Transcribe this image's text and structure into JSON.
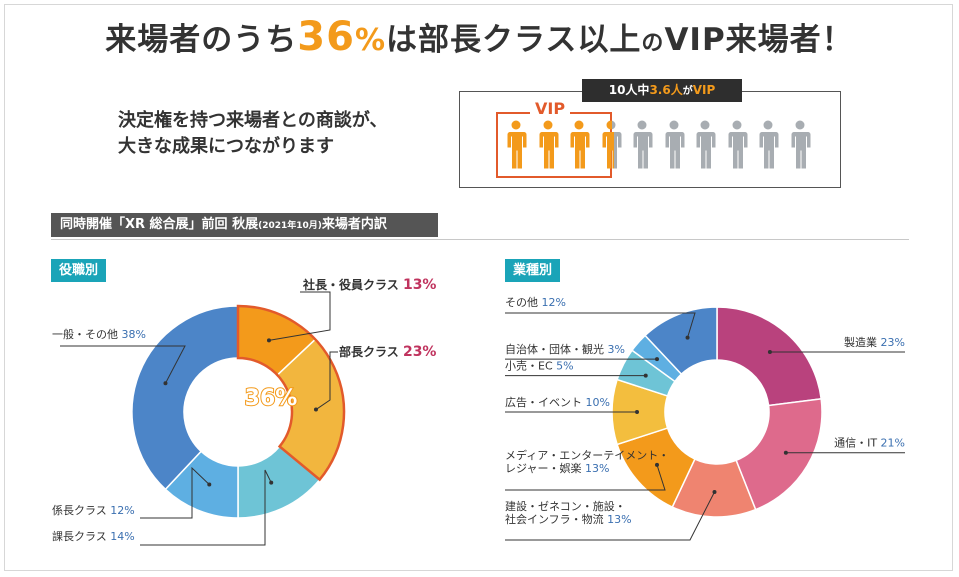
{
  "headline": {
    "part1": "来場者のうち",
    "percent": "36",
    "percent_unit": "%",
    "part2": "は部長クラス以上",
    "particle": "の",
    "part3": "VIP来場者！"
  },
  "subtitle": {
    "line1": "決定権を持つ来場者との商談が、",
    "line2": "大きな成果につながります"
  },
  "vip_box": {
    "tag_prefix": "10人中",
    "tag_value": "3.6人",
    "tag_mid": "が",
    "tag_suffix": "VIP",
    "vip_label": "VIP",
    "vip_count": 3.6,
    "total": 10
  },
  "section": {
    "title_main": "同時開催「XR 総合展」前回 秋展",
    "title_small": "(2021年10月)",
    "title_end": "来場者内訳"
  },
  "colors": {
    "orange": "#f39a1b",
    "red": "#e25a2b",
    "teal": "#1aa4b8",
    "pct_blue": "#3a6fb0",
    "pct_pink": "#c0335e",
    "gray_person": "#a8adb2"
  },
  "chart_data": [
    {
      "type": "pie",
      "title": "役職別",
      "center_label": "36%",
      "slices": [
        {
          "name": "社長・役員クラス",
          "value": 13,
          "pct_label": "13%",
          "color": "#f39a1b",
          "vip": true
        },
        {
          "name": "部長クラス",
          "value": 23,
          "pct_label": "23%",
          "color": "#f2b63e",
          "vip": true
        },
        {
          "name": "課長クラス",
          "value": 14,
          "pct_label": "14%",
          "color": "#6ec4d6",
          "vip": false
        },
        {
          "name": "係長クラス",
          "value": 12,
          "pct_label": "12%",
          "color": "#5eafe2",
          "vip": false
        },
        {
          "name": "一般・その他",
          "value": 38,
          "pct_label": "38%",
          "color": "#4c85c8",
          "vip": false
        }
      ]
    },
    {
      "type": "pie",
      "title": "業種別",
      "slices": [
        {
          "name": "製造業",
          "value": 23,
          "pct_label": "23%",
          "color": "#b9427d"
        },
        {
          "name": "通信・IT",
          "value": 21,
          "pct_label": "21%",
          "color": "#de6a8c"
        },
        {
          "name": "建設・ゼネコン・施設・社会インフラ・物流",
          "line1": "建設・ゼネコン・施設・",
          "line2": "社会インフラ・物流",
          "value": 13,
          "pct_label": "13%",
          "color": "#ef8470"
        },
        {
          "name": "メディア・エンターテイメント・レジャー・娯楽",
          "line1": "メディア・エンターテイメント・",
          "line2": "レジャー・娯楽",
          "value": 13,
          "pct_label": "13%",
          "color": "#f39a1b"
        },
        {
          "name": "広告・イベント",
          "value": 10,
          "pct_label": "10%",
          "color": "#f3be3e"
        },
        {
          "name": "小売・EC",
          "value": 5,
          "pct_label": "5%",
          "color": "#6ec4d6"
        },
        {
          "name": "自治体・団体・観光",
          "value": 3,
          "pct_label": "3%",
          "color": "#5eafe2"
        },
        {
          "name": "その他",
          "value": 12,
          "pct_label": "12%",
          "color": "#4c85c8"
        }
      ]
    }
  ]
}
